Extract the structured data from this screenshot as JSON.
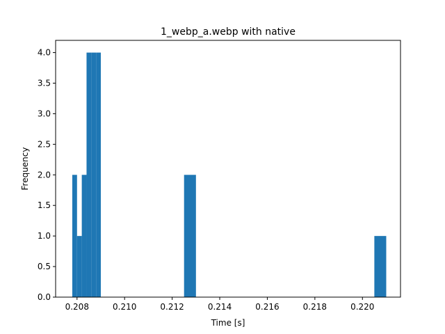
{
  "chart_data": {
    "type": "bar",
    "title": "1_webp_a.webp with native",
    "xlabel": "Time [s]",
    "ylabel": "Frequency",
    "xlim": [
      0.2071,
      0.2216
    ],
    "ylim": [
      0,
      4.2
    ],
    "bins": [
      {
        "x0": 0.2078,
        "x1": 0.208,
        "count": 2
      },
      {
        "x0": 0.208,
        "x1": 0.2082,
        "count": 1
      },
      {
        "x0": 0.2082,
        "x1": 0.2084,
        "count": 2
      },
      {
        "x0": 0.2084,
        "x1": 0.2086,
        "count": 4
      },
      {
        "x0": 0.2086,
        "x1": 0.2088,
        "count": 4
      },
      {
        "x0": 0.2088,
        "x1": 0.209,
        "count": 4
      },
      {
        "x0": 0.2125,
        "x1": 0.213,
        "count": 2
      },
      {
        "x0": 0.2205,
        "x1": 0.221,
        "count": 1
      }
    ],
    "xticks": [
      "0.208",
      "0.210",
      "0.212",
      "0.214",
      "0.216",
      "0.218",
      "0.220"
    ],
    "yticks": [
      "0.0",
      "0.5",
      "1.0",
      "1.5",
      "2.0",
      "2.5",
      "3.0",
      "3.5",
      "4.0"
    ],
    "bar_color": "#1f77b4",
    "grid": false
  }
}
